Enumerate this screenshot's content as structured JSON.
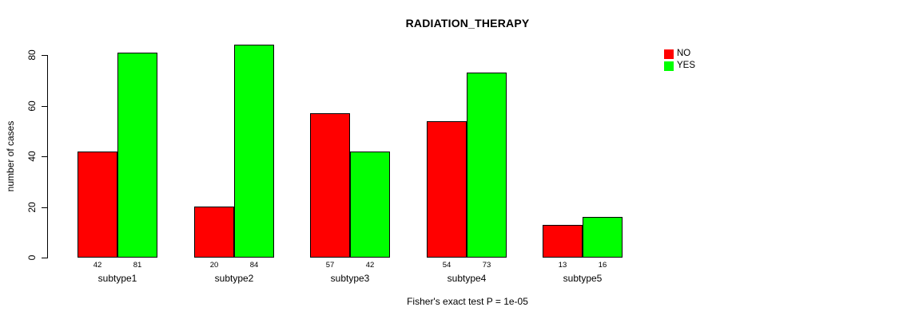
{
  "chart_data": {
    "type": "bar",
    "title": "RADIATION_THERAPY",
    "ylabel": "number of cases",
    "xlabel": "",
    "annotation": "Fisher's exact test P = 1e-05",
    "categories": [
      "subtype1",
      "subtype2",
      "subtype3",
      "subtype4",
      "subtype5"
    ],
    "series": [
      {
        "name": "NO",
        "color": "#ff0000",
        "values": [
          42,
          20,
          57,
          54,
          13
        ]
      },
      {
        "name": "YES",
        "color": "#00ff00",
        "values": [
          81,
          84,
          42,
          73,
          16
        ]
      }
    ],
    "ylim": [
      0,
      80
    ],
    "yticks": [
      0,
      20,
      40,
      60,
      80
    ],
    "grid": false,
    "bar_value_labels_shown": true,
    "legend_position": "top-right",
    "background": "#ffffff",
    "axis_color": "#000000"
  }
}
